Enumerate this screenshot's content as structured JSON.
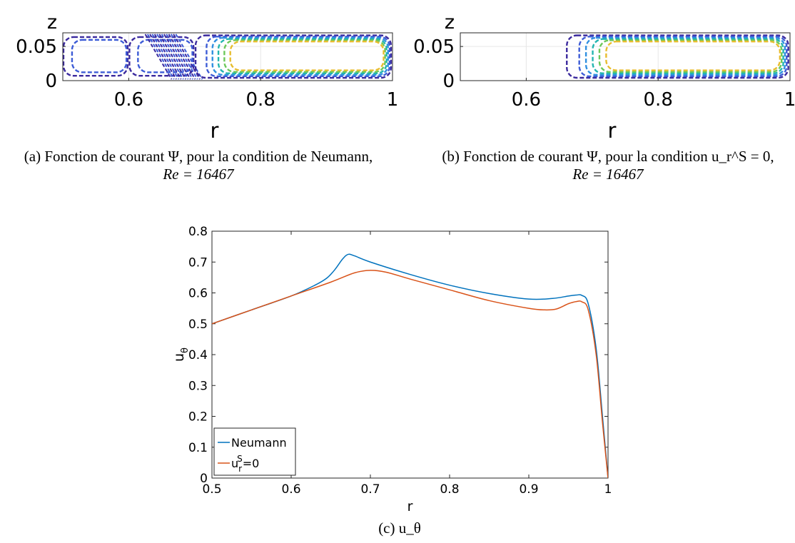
{
  "captions": {
    "a_line1": "(a) Fonction de courant Ψ, pour la condition de Neumann,",
    "a_line2": "Re = 16467",
    "b_line1": "(b) Fonction de courant Ψ, pour la condition u_r^S = 0,",
    "b_line2": "Re = 16467",
    "c": "(c) u_θ"
  },
  "chart_data": [
    {
      "type": "contour",
      "panel": "a",
      "xlabel": "r",
      "ylabel": "z",
      "xlim": [
        0.5,
        1.0
      ],
      "ylim": [
        0,
        0.07
      ],
      "xticks": [
        "0.6",
        "0.8",
        "1"
      ],
      "yticks": [
        "0",
        "0.05"
      ],
      "grid": true,
      "line_style": "dashed",
      "colormap": [
        "#3b2a9e",
        "#3d5cd6",
        "#2f8fe0",
        "#22b5b0",
        "#6cc85a",
        "#e7bd2e"
      ],
      "cells": [
        {
          "r_range": [
            0.5,
            0.6
          ],
          "levels": 2
        },
        {
          "r_range": [
            0.6,
            0.7
          ],
          "levels": 2,
          "dense_band": [
            0.6,
            0.7
          ]
        },
        {
          "r_range": [
            0.7,
            1.0
          ],
          "levels": 6
        }
      ]
    },
    {
      "type": "contour",
      "panel": "b",
      "xlabel": "r",
      "ylabel": "z",
      "xlim": [
        0.5,
        1.0
      ],
      "ylim": [
        0,
        0.07
      ],
      "xticks": [
        "0.6",
        "0.8",
        "1"
      ],
      "yticks": [
        "0",
        "0.05"
      ],
      "grid": true,
      "line_style": "dashed",
      "colormap": [
        "#3b2a9e",
        "#3d5cd6",
        "#2f8fe0",
        "#22b5b0",
        "#6cc85a",
        "#e7bd2e"
      ],
      "cells": [
        {
          "r_range": [
            0.66,
            1.0
          ],
          "levels": 6
        }
      ]
    },
    {
      "type": "line",
      "panel": "c",
      "xlabel": "r",
      "ylabel": "u_θ",
      "xlim": [
        0.5,
        1.0
      ],
      "ylim": [
        0,
        0.8
      ],
      "xticks": [
        "0.5",
        "0.6",
        "0.7",
        "0.8",
        "0.9",
        "1"
      ],
      "yticks": [
        "0",
        "0.1",
        "0.2",
        "0.3",
        "0.4",
        "0.5",
        "0.6",
        "0.7",
        "0.8"
      ],
      "grid": false,
      "legend_position": "bottom-left",
      "series": [
        {
          "name": "Neumann",
          "color": "#0072BD",
          "x": [
            0.5,
            0.55,
            0.6,
            0.63,
            0.645,
            0.655,
            0.665,
            0.672,
            0.68,
            0.7,
            0.75,
            0.8,
            0.85,
            0.9,
            0.93,
            0.95,
            0.96,
            0.967,
            0.975,
            0.985,
            0.993,
            1.0
          ],
          "y": [
            0.5,
            0.545,
            0.59,
            0.625,
            0.648,
            0.675,
            0.71,
            0.725,
            0.72,
            0.7,
            0.66,
            0.625,
            0.598,
            0.58,
            0.582,
            0.59,
            0.593,
            0.592,
            0.565,
            0.42,
            0.2,
            0.0
          ]
        },
        {
          "name": "u_r^S=0",
          "color": "#D95319",
          "x": [
            0.5,
            0.55,
            0.6,
            0.65,
            0.68,
            0.7,
            0.72,
            0.75,
            0.8,
            0.85,
            0.9,
            0.92,
            0.935,
            0.95,
            0.96,
            0.967,
            0.975,
            0.985,
            0.993,
            1.0
          ],
          "y": [
            0.5,
            0.545,
            0.59,
            0.635,
            0.665,
            0.673,
            0.667,
            0.645,
            0.61,
            0.575,
            0.55,
            0.545,
            0.548,
            0.565,
            0.572,
            0.571,
            0.545,
            0.4,
            0.18,
            0.0
          ]
        }
      ]
    }
  ]
}
